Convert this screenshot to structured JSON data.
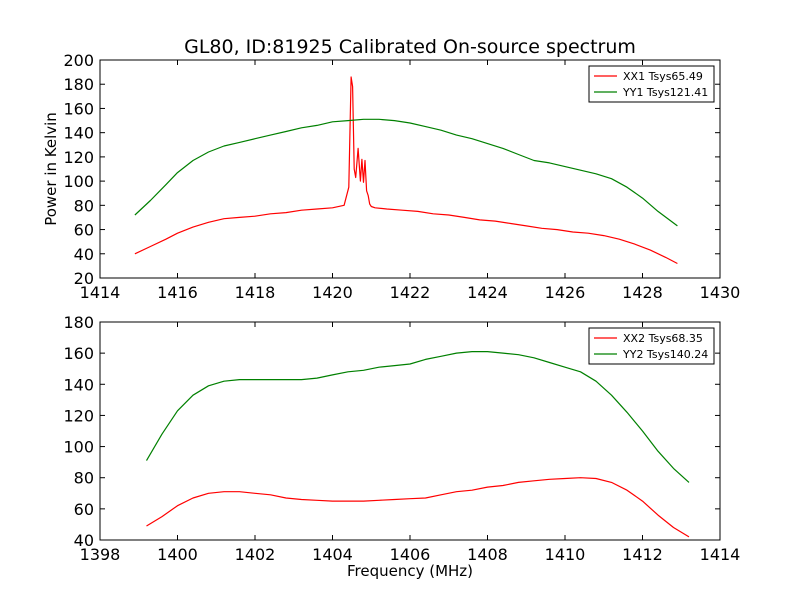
{
  "title": "GL80, ID:81925 Calibrated On-source spectrum",
  "chart_data": [
    {
      "type": "line",
      "ylabel": "Power in Kelvin",
      "xlabel": "",
      "xlim": [
        1414,
        1430
      ],
      "ylim": [
        20,
        200
      ],
      "xticks": [
        1414,
        1416,
        1418,
        1420,
        1422,
        1424,
        1426,
        1428,
        1430
      ],
      "yticks": [
        20,
        40,
        60,
        80,
        100,
        120,
        140,
        160,
        180,
        200
      ],
      "legend": "top-right",
      "grid": false,
      "series": [
        {
          "name": "XX1 Tsys65.49",
          "color": "#ff0000",
          "x": [
            1414.9,
            1415.3,
            1415.7,
            1416.0,
            1416.4,
            1416.8,
            1417.2,
            1417.6,
            1418.0,
            1418.4,
            1418.8,
            1419.2,
            1419.6,
            1420.0,
            1420.3,
            1420.42,
            1420.48,
            1420.52,
            1420.56,
            1420.6,
            1420.66,
            1420.72,
            1420.76,
            1420.8,
            1420.84,
            1420.88,
            1420.92,
            1420.96,
            1421.0,
            1421.1,
            1421.4,
            1421.8,
            1422.2,
            1422.6,
            1423.0,
            1423.4,
            1423.8,
            1424.2,
            1424.6,
            1425.0,
            1425.4,
            1425.8,
            1426.2,
            1426.6,
            1427.0,
            1427.4,
            1427.8,
            1428.2,
            1428.6,
            1428.9
          ],
          "y": [
            40,
            46,
            52,
            57,
            62,
            66,
            69,
            70,
            71,
            73,
            74,
            76,
            77,
            78,
            80,
            95,
            186,
            178,
            110,
            103,
            127,
            100,
            118,
            99,
            117,
            92,
            88,
            81,
            79,
            78,
            77,
            76,
            75,
            73,
            72,
            70,
            68,
            67,
            65,
            63,
            61,
            60,
            58,
            57,
            55,
            52,
            48,
            43,
            37,
            32
          ]
        },
        {
          "name": "YY1 Tsys121.41",
          "color": "#008000",
          "x": [
            1414.9,
            1415.3,
            1415.7,
            1416.0,
            1416.4,
            1416.8,
            1417.2,
            1417.6,
            1418.0,
            1418.4,
            1418.8,
            1419.2,
            1419.6,
            1420.0,
            1420.4,
            1420.8,
            1421.2,
            1421.6,
            1422.0,
            1422.4,
            1422.8,
            1423.2,
            1423.6,
            1424.0,
            1424.4,
            1424.8,
            1425.2,
            1425.6,
            1426.0,
            1426.4,
            1426.8,
            1427.2,
            1427.6,
            1428.0,
            1428.4,
            1428.9
          ],
          "y": [
            72,
            84,
            97,
            107,
            117,
            124,
            129,
            132,
            135,
            138,
            141,
            144,
            146,
            149,
            150,
            151,
            151,
            150,
            148,
            145,
            142,
            138,
            135,
            131,
            127,
            122,
            117,
            115,
            112,
            109,
            106,
            102,
            95,
            86,
            75,
            63
          ]
        }
      ]
    },
    {
      "type": "line",
      "ylabel": "",
      "xlabel": "Frequency (MHz)",
      "xlim": [
        1398,
        1414
      ],
      "ylim": [
        40,
        180
      ],
      "xticks": [
        1398,
        1400,
        1402,
        1404,
        1406,
        1408,
        1410,
        1412,
        1414
      ],
      "yticks": [
        40,
        60,
        80,
        100,
        120,
        140,
        160,
        180
      ],
      "legend": "top-right",
      "grid": false,
      "series": [
        {
          "name": "XX2 Tsys68.35",
          "color": "#ff0000",
          "x": [
            1399.2,
            1399.6,
            1400.0,
            1400.4,
            1400.8,
            1401.2,
            1401.6,
            1402.0,
            1402.4,
            1402.8,
            1403.2,
            1403.6,
            1404.0,
            1404.4,
            1404.8,
            1405.2,
            1405.6,
            1406.0,
            1406.4,
            1406.8,
            1407.2,
            1407.6,
            1408.0,
            1408.4,
            1408.8,
            1409.2,
            1409.6,
            1410.0,
            1410.4,
            1410.8,
            1411.2,
            1411.6,
            1412.0,
            1412.4,
            1412.8,
            1413.2
          ],
          "y": [
            49,
            55,
            62,
            67,
            70,
            71,
            71,
            70,
            69,
            67,
            66,
            65.5,
            65,
            65,
            65,
            65.5,
            66,
            66.5,
            67,
            69,
            71,
            72,
            74,
            75,
            77,
            78,
            79,
            79.5,
            80,
            79.5,
            77,
            72,
            65,
            56,
            48,
            42
          ]
        },
        {
          "name": "YY2 Tsys140.24",
          "color": "#008000",
          "x": [
            1399.2,
            1399.6,
            1400.0,
            1400.4,
            1400.8,
            1401.2,
            1401.6,
            1402.0,
            1402.4,
            1402.8,
            1403.2,
            1403.6,
            1404.0,
            1404.4,
            1404.8,
            1405.2,
            1405.6,
            1406.0,
            1406.4,
            1406.8,
            1407.2,
            1407.6,
            1408.0,
            1408.4,
            1408.8,
            1409.2,
            1409.6,
            1410.0,
            1410.4,
            1410.8,
            1411.2,
            1411.6,
            1412.0,
            1412.4,
            1412.8,
            1413.2
          ],
          "y": [
            91,
            108,
            123,
            133,
            139,
            142,
            143,
            143,
            143,
            143,
            143,
            144,
            146,
            148,
            149,
            151,
            152,
            153,
            156,
            158,
            160,
            161,
            161,
            160,
            159,
            157,
            154,
            151,
            148,
            142,
            133,
            122,
            110,
            97,
            86,
            77
          ]
        }
      ]
    }
  ]
}
